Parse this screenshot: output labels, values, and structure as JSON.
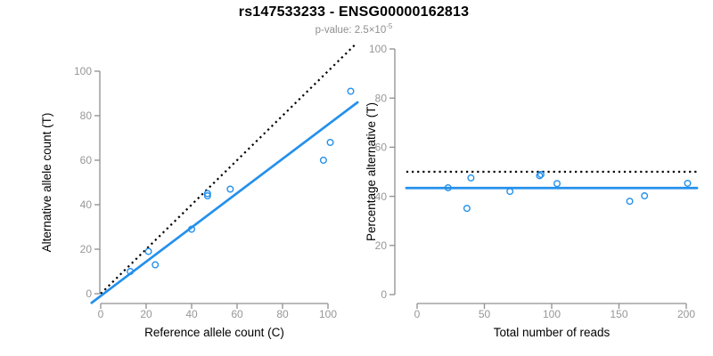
{
  "figure": {
    "title": "rs147533233 - ENSG00000162813",
    "subtitle_prefix": "p-value: ",
    "subtitle_value": "2.5×10",
    "subtitle_exponent": "-5"
  },
  "colors": {
    "accent_blue": "#2490ec",
    "dotted_line_black": "#000000",
    "axis_gray": "#8f8f8f",
    "tick_label_gray": "#979797",
    "text_black": "#000000",
    "subtitle_gray": "#8f8f8f",
    "background": "#ffffff"
  },
  "chart_data": [
    {
      "type": "scatter",
      "title": "",
      "xlabel": "Reference allele count (C)",
      "ylabel": "Alternative allele count (T)",
      "xticks": [
        0,
        20,
        40,
        60,
        80,
        100
      ],
      "yticks": [
        0,
        20,
        40,
        60,
        80,
        100
      ],
      "xlim": [
        0,
        112
      ],
      "ylim": [
        0,
        112
      ],
      "grid": false,
      "marker": "open-circle",
      "points": [
        [
          13,
          10
        ],
        [
          21,
          19
        ],
        [
          24,
          13
        ],
        [
          40,
          29
        ],
        [
          47,
          44
        ],
        [
          47,
          45
        ],
        [
          57,
          47
        ],
        [
          98,
          60
        ],
        [
          101,
          68
        ],
        [
          110,
          91
        ]
      ],
      "lines": [
        {
          "name": "identity-line",
          "style": "dotted",
          "color": "#000000",
          "x1": 0,
          "y1": 0,
          "x2": 112,
          "y2": 112
        },
        {
          "name": "fit-line",
          "style": "solid",
          "color": "#2490ec",
          "x1": -4,
          "y1": -4.1,
          "x2": 113,
          "y2": 86
        }
      ]
    },
    {
      "type": "scatter",
      "title": "",
      "xlabel": "Total number of reads",
      "ylabel": "Percentage alternative (T)",
      "xticks": [
        0,
        50,
        100,
        150,
        200
      ],
      "yticks": [
        0,
        20,
        40,
        60,
        80,
        100
      ],
      "xlim": [
        0,
        208
      ],
      "ylim": [
        0,
        104
      ],
      "grid": false,
      "marker": "open-circle",
      "points": [
        [
          23,
          43.5
        ],
        [
          37,
          35.1
        ],
        [
          40,
          47.5
        ],
        [
          69,
          42.0
        ],
        [
          91,
          48.4
        ],
        [
          92,
          48.9
        ],
        [
          104,
          45.2
        ],
        [
          158,
          38.0
        ],
        [
          169,
          40.2
        ],
        [
          201,
          45.3
        ]
      ],
      "lines": [
        {
          "name": "expected-50pct-line",
          "style": "dotted",
          "color": "#000000",
          "x1": -8,
          "y1": 50,
          "x2": 208,
          "y2": 50
        },
        {
          "name": "mean-percentage-line",
          "style": "solid",
          "color": "#2490ec",
          "x1": -8,
          "y1": 43.4,
          "x2": 208,
          "y2": 43.4
        }
      ]
    }
  ]
}
